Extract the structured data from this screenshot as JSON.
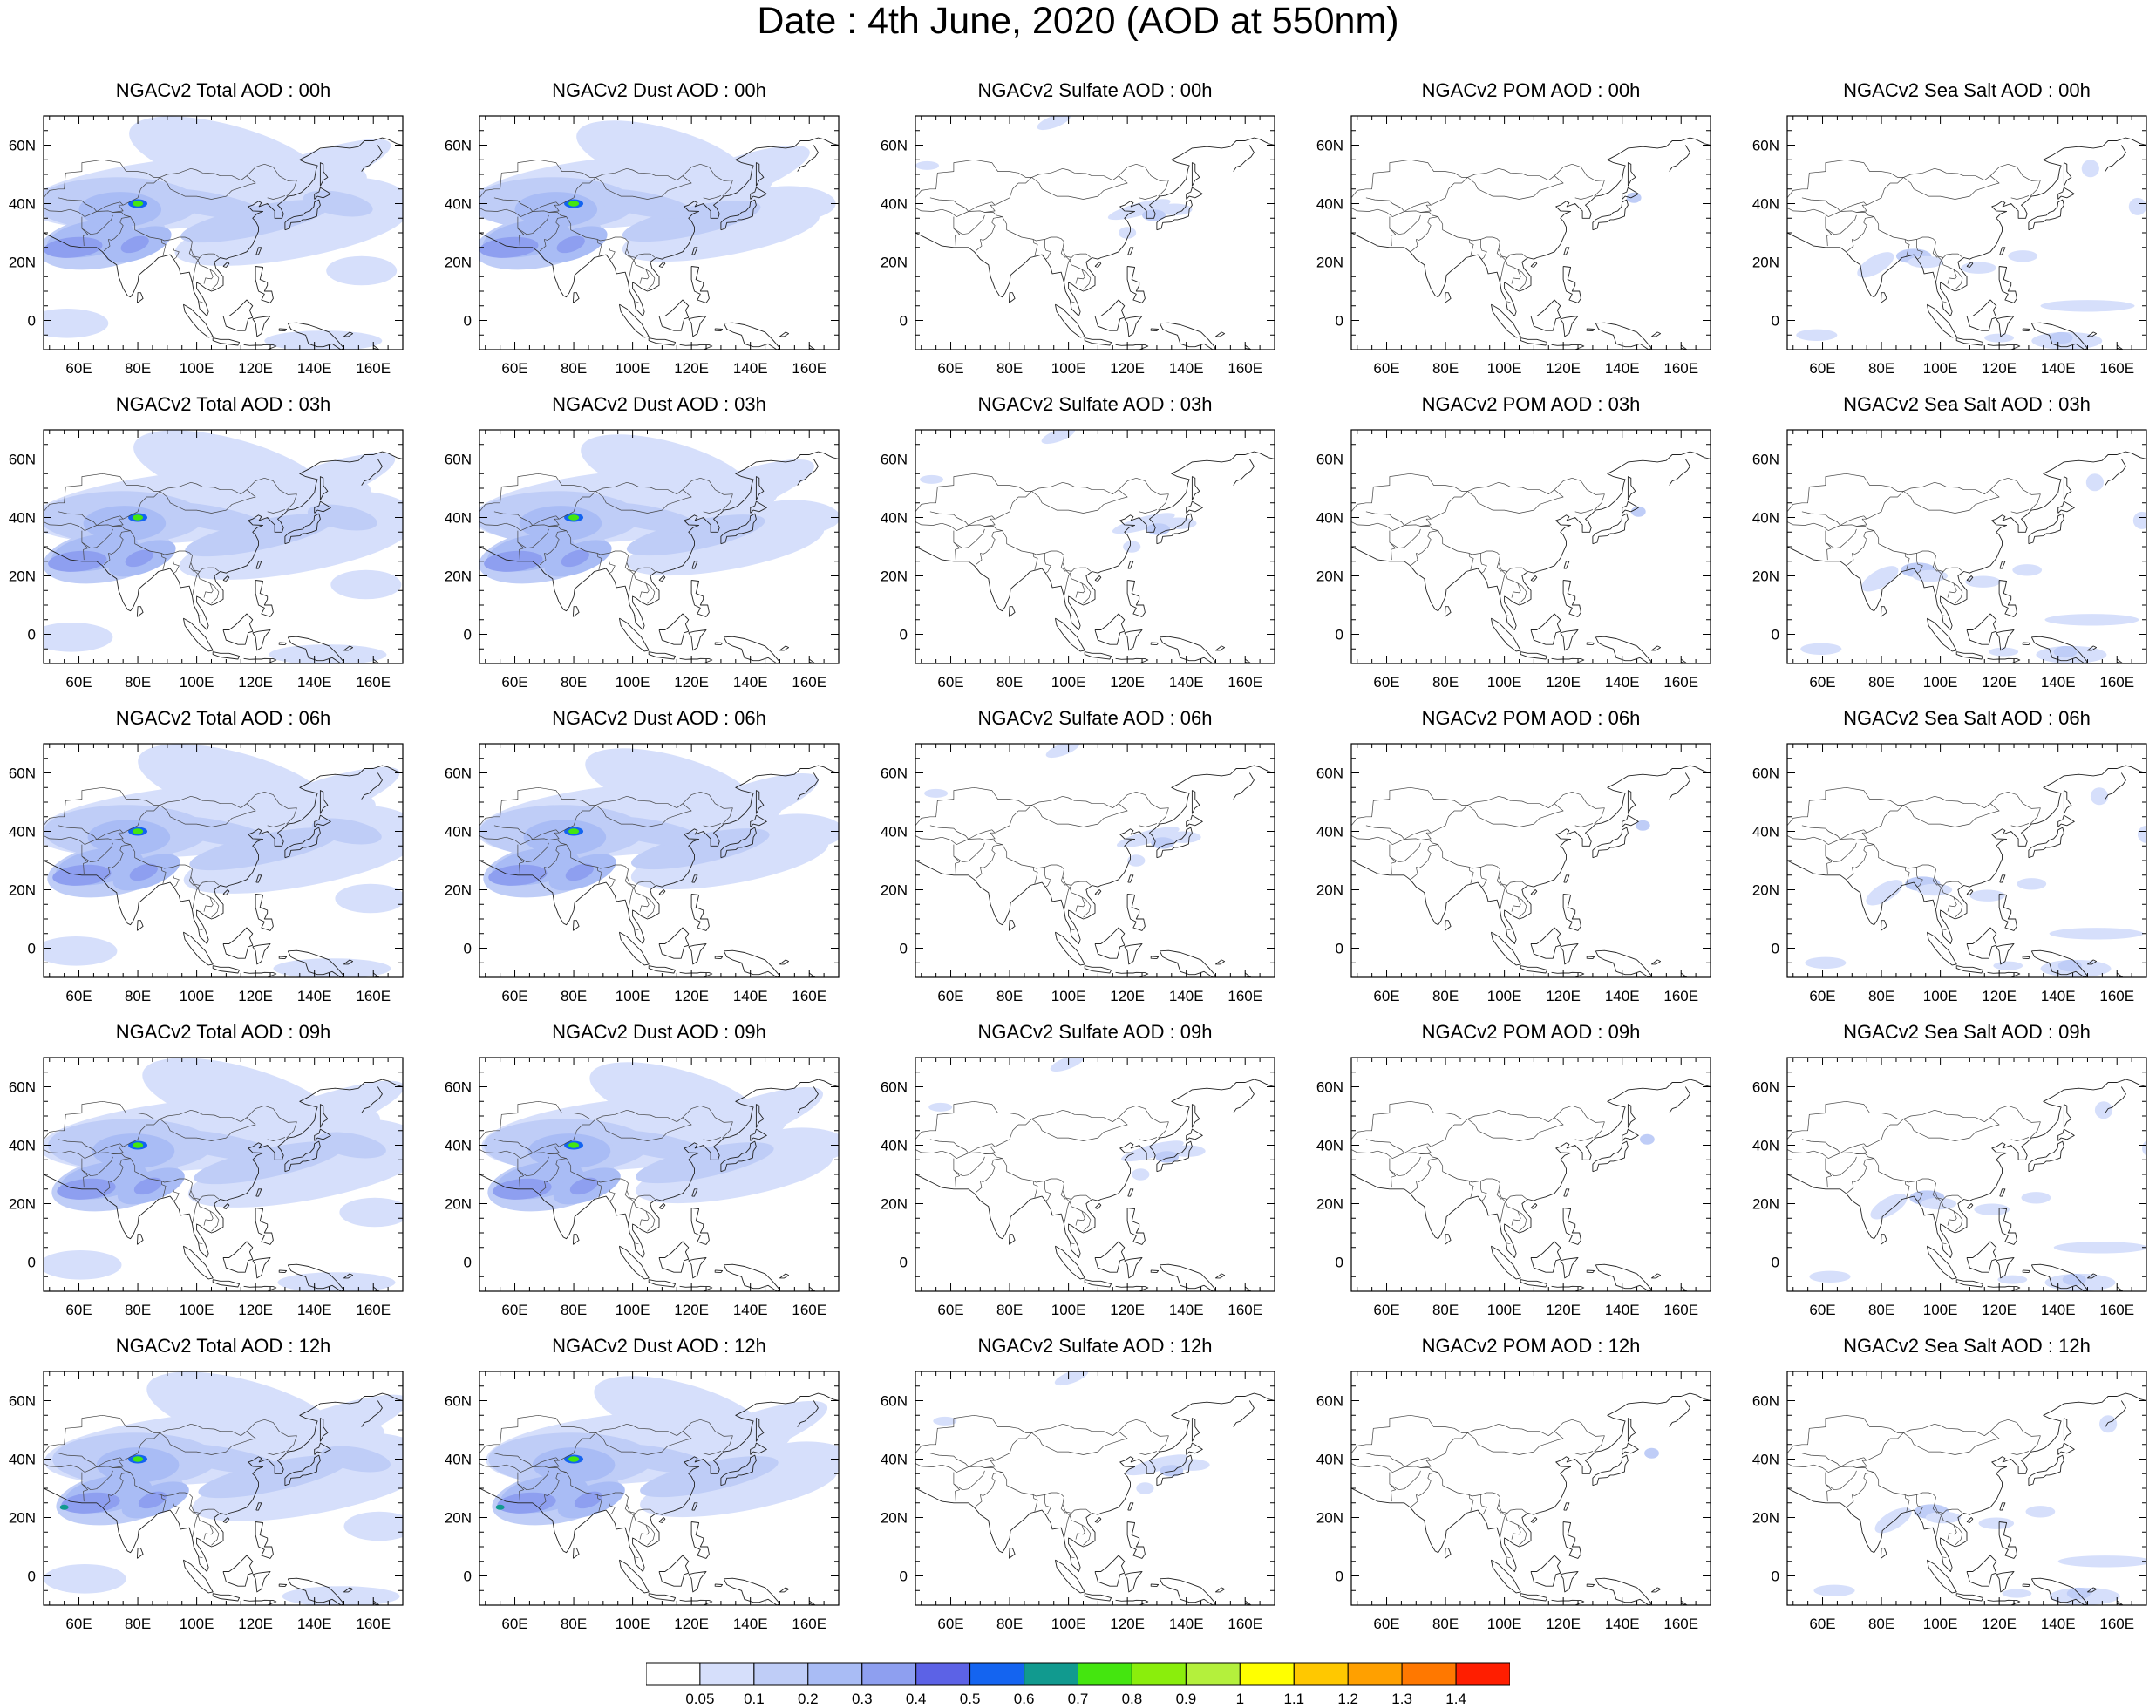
{
  "figure": {
    "title": "Date : 4th June, 2020 (AOD at 550nm)"
  },
  "axes": {
    "x_ticks": [
      "60E",
      "80E",
      "100E",
      "120E",
      "140E",
      "160E"
    ],
    "y_ticks": [
      "60N",
      "40N",
      "20N",
      "0"
    ],
    "x_values": [
      60,
      80,
      100,
      120,
      140,
      160
    ],
    "y_values": [
      60,
      40,
      20,
      0
    ],
    "lon_range": [
      48,
      170
    ],
    "lat_range": [
      -10,
      70
    ]
  },
  "species": [
    "total",
    "dust",
    "sulfate",
    "pom",
    "seasalt"
  ],
  "panel_titles": [
    [
      "NGACv2 Total AOD : 00h",
      "NGACv2 Dust AOD : 00h",
      "NGACv2 Sulfate AOD : 00h",
      "NGACv2 POM AOD : 00h",
      "NGACv2 Sea Salt AOD : 00h"
    ],
    [
      "NGACv2 Total AOD : 03h",
      "NGACv2 Dust AOD : 03h",
      "NGACv2 Sulfate AOD : 03h",
      "NGACv2 POM AOD : 03h",
      "NGACv2 Sea Salt AOD : 03h"
    ],
    [
      "NGACv2 Total AOD : 06h",
      "NGACv2 Dust AOD : 06h",
      "NGACv2 Sulfate AOD : 06h",
      "NGACv2 POM AOD : 06h",
      "NGACv2 Sea Salt AOD : 06h"
    ],
    [
      "NGACv2 Total AOD : 09h",
      "NGACv2 Dust AOD : 09h",
      "NGACv2 Sulfate AOD : 09h",
      "NGACv2 POM AOD : 09h",
      "NGACv2 Sea Salt  AOD : 09h"
    ],
    [
      "NGACv2 Total AOD  : 12h",
      "NGACv2 Dust AOD : 12h",
      "NGACv2 Sulfate AOD : 12h",
      "NGACv2 POM  AOD : 12h",
      "NGACv2 Sea Salt  AOD : 12h"
    ]
  ],
  "colorbar": {
    "labels": [
      "0.05",
      "0.1",
      "0.2",
      "0.3",
      "0.4",
      "0.5",
      "0.6",
      "0.7",
      "0.8",
      "0.9",
      "1",
      "1.1",
      "1.2",
      "1.3",
      "1.4"
    ],
    "colors": [
      "#ffffff",
      "#d6dffb",
      "#bfcdf7",
      "#a9bcf5",
      "#8e9ff0",
      "#5c62e6",
      "#1464f0",
      "#119a8f",
      "#44e60f",
      "#8aee0c",
      "#b4f03c",
      "#ffff00",
      "#ffc800",
      "#ffa000",
      "#ff7800",
      "#ff1e00"
    ]
  }
}
